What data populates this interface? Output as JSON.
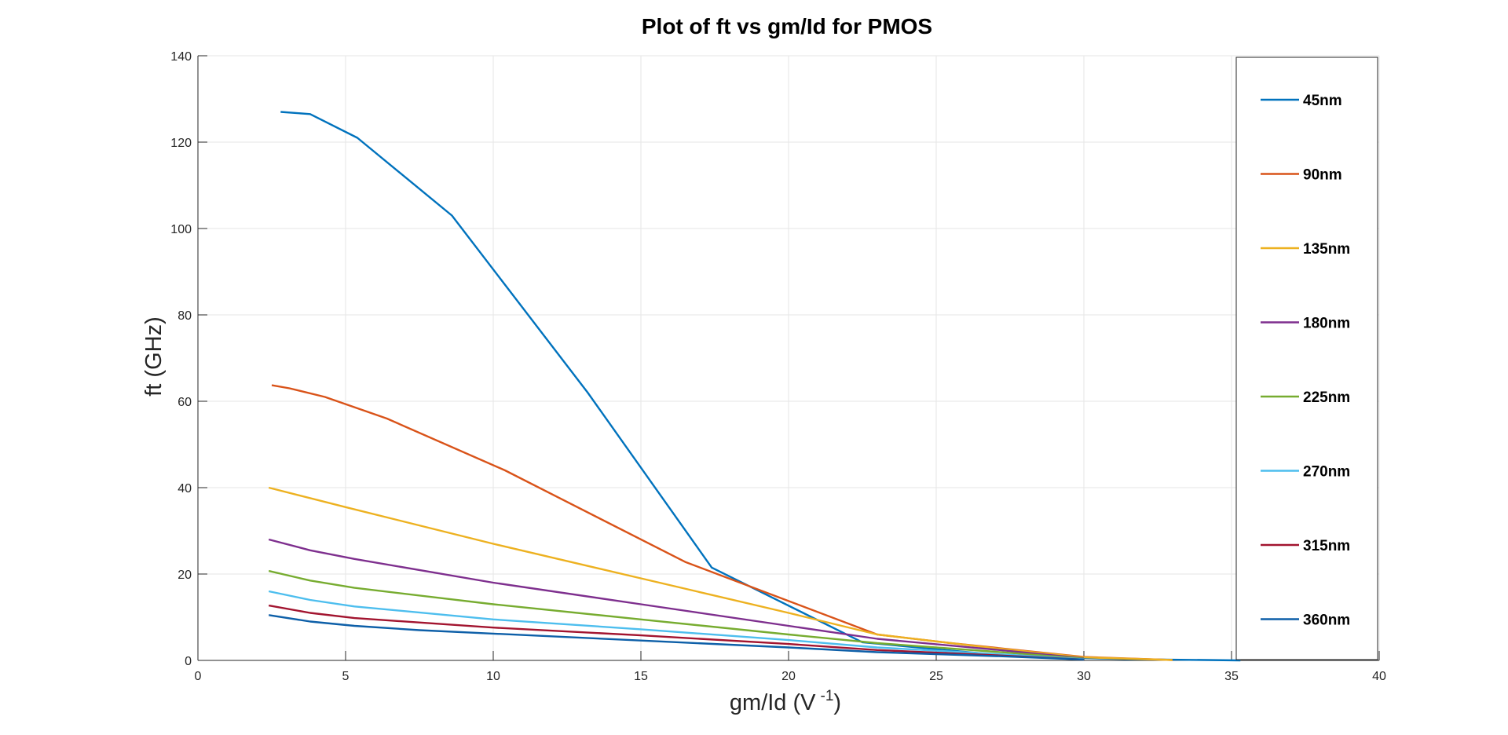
{
  "chart_data": {
    "type": "line",
    "title": "Plot of ft vs gm/Id for PMOS",
    "xlabel_main": "gm/Id  (V",
    "xlabel_sup": "-1",
    "xlabel_end": ")",
    "ylabel": "ft (GHz)",
    "xlim": [
      0,
      40
    ],
    "ylim": [
      0,
      140
    ],
    "xticks": [
      0,
      5,
      10,
      15,
      20,
      25,
      30,
      35,
      40
    ],
    "yticks": [
      0,
      20,
      40,
      60,
      80,
      100,
      120,
      140
    ],
    "xtick_labels": [
      "0",
      "5",
      "10",
      "15",
      "20",
      "25",
      "30",
      "35",
      "40"
    ],
    "ytick_labels": [
      "0",
      "20",
      "40",
      "60",
      "80",
      "100",
      "120",
      "140"
    ],
    "grid": true,
    "legend_position": "right",
    "series": [
      {
        "name": "45nm",
        "color": "#0072BD",
        "x": [
          2.8,
          3.8,
          5.4,
          8.6,
          13.2,
          17.4,
          22.5,
          27.5,
          31.5,
          35.3
        ],
        "y": [
          127,
          126.5,
          121,
          103,
          62,
          21.5,
          4.2,
          1.0,
          0.3,
          0.0
        ]
      },
      {
        "name": "90nm",
        "color": "#D95319",
        "x": [
          2.5,
          3.1,
          4.3,
          6.4,
          10.4,
          16.5,
          23,
          25.5,
          30,
          33
        ],
        "y": [
          63.7,
          63,
          61,
          56,
          44,
          22.8,
          6.0,
          4.0,
          0.8,
          0.1
        ]
      },
      {
        "name": "135nm",
        "color": "#EDB120",
        "x": [
          2.4,
          5,
          10,
          15,
          20,
          23,
          27,
          30,
          33
        ],
        "y": [
          40,
          35.5,
          27,
          19,
          11,
          6,
          2.8,
          0.7,
          0.1
        ]
      },
      {
        "name": "180nm",
        "color": "#7E2F8E",
        "x": [
          2.4,
          3.8,
          5.3,
          10,
          15,
          20,
          23,
          27,
          30
        ],
        "y": [
          28,
          25.5,
          23.5,
          18,
          13,
          8,
          5,
          2.5,
          0.5
        ]
      },
      {
        "name": "225nm",
        "color": "#77AC30",
        "x": [
          2.4,
          3.8,
          5.3,
          10,
          15,
          20,
          23,
          27,
          30
        ],
        "y": [
          20.7,
          18.5,
          16.8,
          13,
          9.5,
          6,
          4,
          2,
          0.4
        ]
      },
      {
        "name": "270nm",
        "color": "#4DBEEE",
        "x": [
          2.4,
          3.8,
          5.3,
          10,
          15,
          20,
          23,
          27,
          30
        ],
        "y": [
          16,
          14,
          12.5,
          9.5,
          7.2,
          4.7,
          3,
          1.5,
          0.3
        ]
      },
      {
        "name": "315nm",
        "color": "#A2142F",
        "x": [
          2.4,
          3.8,
          5.3,
          10,
          15,
          20,
          23,
          27,
          30
        ],
        "y": [
          12.7,
          11,
          9.8,
          7.6,
          5.8,
          3.8,
          2.4,
          1.2,
          0.2
        ]
      },
      {
        "name": "360nm",
        "color": "#0D5FA8",
        "x": [
          2.4,
          3.8,
          5.3,
          7.5,
          10,
          15,
          20,
          23,
          27,
          30
        ],
        "y": [
          10.5,
          9,
          8,
          7,
          6.2,
          4.6,
          3,
          1.9,
          1.0,
          0.2
        ]
      }
    ]
  }
}
